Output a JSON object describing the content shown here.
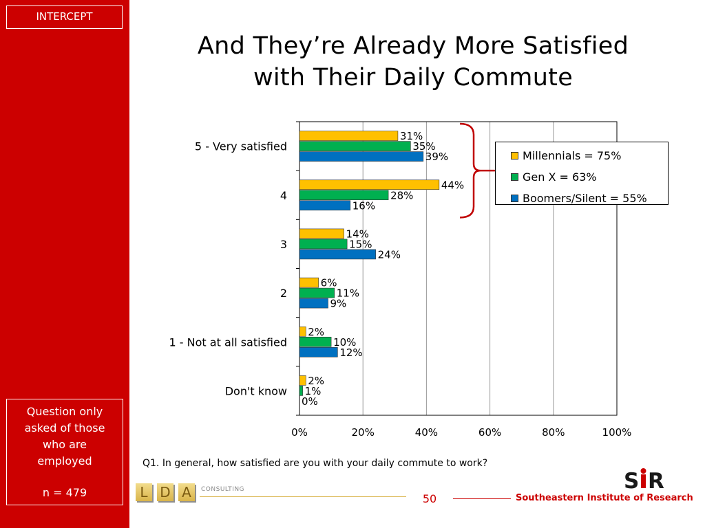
{
  "sidebar": {
    "tag": "INTERCEPT",
    "note_lines": [
      "Question only",
      "asked of those",
      "who are",
      "employed"
    ],
    "sample": "n = 479"
  },
  "title_lines": [
    "And They’re Already More Satisfied",
    "with Their Daily Commute"
  ],
  "question": "Q1. In general, how satisfied are you with your daily commute to work?",
  "footer": {
    "lda_letters": [
      "L",
      "D",
      "A"
    ],
    "lda_consulting": "CONSULTING",
    "page_number": "50",
    "org_name": "Southeastern Institute of Research",
    "logo_text": "SIR"
  },
  "colors": {
    "sidebar": "#cc0000",
    "bracket": "#c00000"
  },
  "chart_data": {
    "type": "bar",
    "orientation": "horizontal",
    "categories": [
      "5 - Very satisfied",
      "4",
      "3",
      "2",
      "1 - Not at all satisfied",
      "Don't know"
    ],
    "series": [
      {
        "name": "Millennials = 75%",
        "color": "#ffc000",
        "values": [
          31,
          44,
          14,
          6,
          2,
          2
        ],
        "labels": [
          "31%",
          "44%",
          "14%",
          "6%",
          "2%",
          "2%"
        ]
      },
      {
        "name": "Gen X = 63%",
        "color": "#00b050",
        "values": [
          35,
          28,
          15,
          11,
          10,
          1
        ],
        "labels": [
          "35%",
          "28%",
          "15%",
          "11%",
          "10%",
          "1%"
        ]
      },
      {
        "name": "Boomers/Silent = 55%",
        "color": "#0070c0",
        "values": [
          39,
          16,
          24,
          9,
          12,
          0
        ],
        "labels": [
          "39%",
          "16%",
          "24%",
          "9%",
          "12%",
          "0%"
        ]
      }
    ],
    "xlim": [
      0,
      100
    ],
    "xticks": [
      "0%",
      "20%",
      "40%",
      "60%",
      "80%",
      "100%"
    ],
    "grid": true,
    "legend_position": "right",
    "bracket_groups": [
      "5 - Very satisfied",
      "4"
    ]
  }
}
